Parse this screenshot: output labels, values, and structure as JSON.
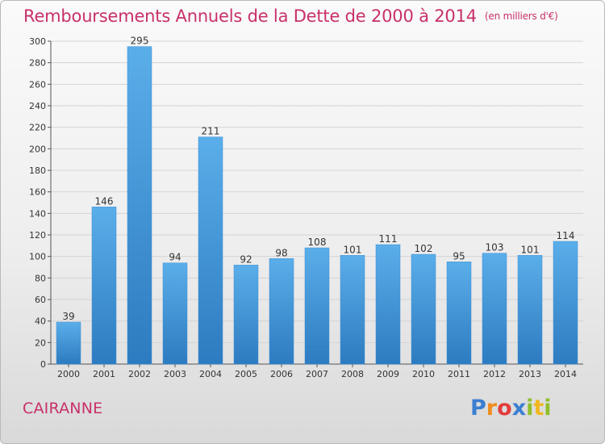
{
  "header": {
    "title": "Remboursements Annuels de la Dette de 2000 à 2014",
    "unit": "(en milliers d'€)"
  },
  "footer": {
    "commune": "CAIRANNE",
    "logo_letters": [
      "P",
      "r",
      "o",
      "x",
      "i",
      "t",
      "i"
    ],
    "logo_colors": [
      "#3a7fd0",
      "#f08c1e",
      "#e23c3c",
      "#3a7fd0",
      "#8fbf2a",
      "#f0b81e",
      "#8fbf2a"
    ]
  },
  "chart_data": {
    "type": "bar",
    "categories": [
      "2000",
      "2001",
      "2002",
      "2003",
      "2004",
      "2005",
      "2006",
      "2007",
      "2008",
      "2009",
      "2010",
      "2011",
      "2012",
      "2013",
      "2014"
    ],
    "values": [
      39,
      146,
      295,
      94,
      211,
      92,
      98,
      108,
      101,
      111,
      102,
      95,
      103,
      101,
      114
    ],
    "y_ticks": [
      0,
      20,
      40,
      60,
      80,
      100,
      120,
      140,
      160,
      180,
      200,
      220,
      240,
      260,
      280,
      300
    ],
    "ylim": [
      0,
      300
    ],
    "grid": true,
    "bar_color": "#4a9fe0",
    "bar_color_dark": "#2f7fc4",
    "data_labels": true
  }
}
